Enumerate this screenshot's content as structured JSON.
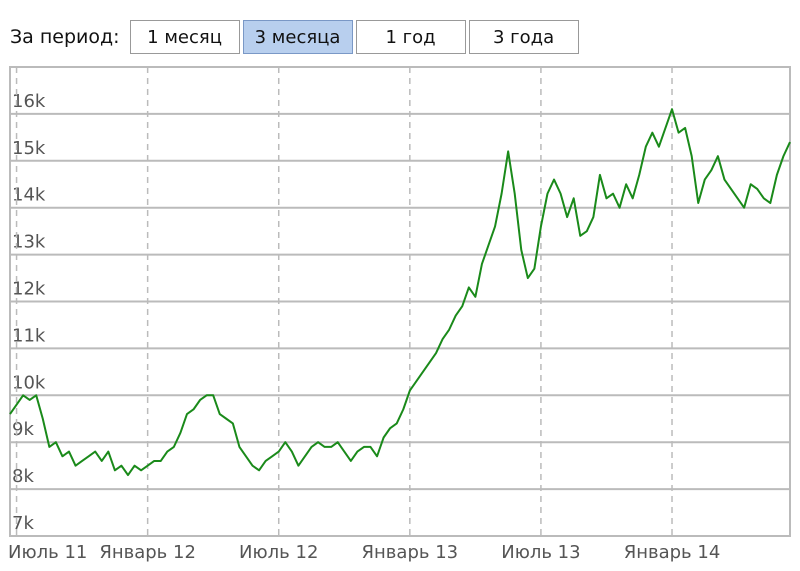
{
  "period_label": "За период:",
  "period_buttons": [
    {
      "label": "1 месяц",
      "active": false
    },
    {
      "label": "3 месяца",
      "active": true
    },
    {
      "label": "1 год",
      "active": false
    },
    {
      "label": "3 года",
      "active": false
    }
  ],
  "chart_data": {
    "type": "line",
    "categories": [
      null,
      "Июль 11",
      null,
      null,
      null,
      null,
      null,
      null,
      null,
      null,
      null,
      null,
      null,
      null,
      null,
      null,
      null,
      null,
      null,
      null,
      null,
      "Январь 12",
      null,
      null,
      null,
      null,
      null,
      null,
      null,
      null,
      null,
      null,
      null,
      null,
      null,
      null,
      null,
      null,
      null,
      null,
      null,
      "Июль 12",
      null,
      null,
      null,
      null,
      null,
      null,
      null,
      null,
      null,
      null,
      null,
      null,
      null,
      null,
      null,
      null,
      null,
      null,
      null,
      "Январь 13",
      null,
      null,
      null,
      null,
      null,
      null,
      null,
      null,
      null,
      null,
      null,
      null,
      null,
      null,
      null,
      null,
      null,
      null,
      null,
      "Июль 13",
      null,
      null,
      null,
      null,
      null,
      null,
      null,
      null,
      null,
      null,
      null,
      null,
      null,
      null,
      null,
      null,
      null,
      null,
      null,
      "Январь 14",
      null,
      null,
      null,
      null,
      null,
      null,
      null,
      null,
      null,
      null,
      null,
      null,
      null,
      null,
      null,
      null,
      null,
      null
    ],
    "series": [
      {
        "color": "#1a8a1a",
        "values": [
          9600,
          9800,
          10000,
          9900,
          10000,
          9500,
          8900,
          9000,
          8700,
          8800,
          8500,
          8600,
          8700,
          8800,
          8600,
          8800,
          8400,
          8500,
          8300,
          8500,
          8400,
          8500,
          8600,
          8600,
          8800,
          8900,
          9200,
          9600,
          9700,
          9900,
          10000,
          10000,
          9600,
          9500,
          9400,
          8900,
          8700,
          8500,
          8400,
          8600,
          8700,
          8800,
          9000,
          8800,
          8500,
          8700,
          8900,
          9000,
          8900,
          8900,
          9000,
          8800,
          8600,
          8800,
          8900,
          8900,
          8700,
          9100,
          9300,
          9400,
          9700,
          10100,
          10300,
          10500,
          10700,
          10900,
          11200,
          11400,
          11700,
          11900,
          12300,
          12100,
          12800,
          13200,
          13600,
          14300,
          15200,
          14300,
          13100,
          12500,
          12700,
          13600,
          14300,
          14600,
          14300,
          13800,
          14200,
          13400,
          13500,
          13800,
          14700,
          14200,
          14300,
          14000,
          14500,
          14200,
          14700,
          15300,
          15600,
          15300,
          15700,
          16100,
          15600,
          15700,
          15100,
          14100,
          14600,
          14800,
          15100,
          14600,
          14400,
          14200,
          14000,
          14500,
          14400,
          14200,
          14100,
          14700,
          15100,
          15400
        ]
      }
    ],
    "ylim": [
      7000,
      17000
    ],
    "yticks": [
      {
        "value": 7000,
        "label": "7k"
      },
      {
        "value": 8000,
        "label": "8k"
      },
      {
        "value": 9000,
        "label": "9k"
      },
      {
        "value": 10000,
        "label": "10k"
      },
      {
        "value": 11000,
        "label": "11k"
      },
      {
        "value": 12000,
        "label": "12k"
      },
      {
        "value": 13000,
        "label": "13k"
      },
      {
        "value": 14000,
        "label": "14k"
      },
      {
        "value": 15000,
        "label": "15k"
      },
      {
        "value": 16000,
        "label": "16k"
      }
    ],
    "grid": true
  }
}
